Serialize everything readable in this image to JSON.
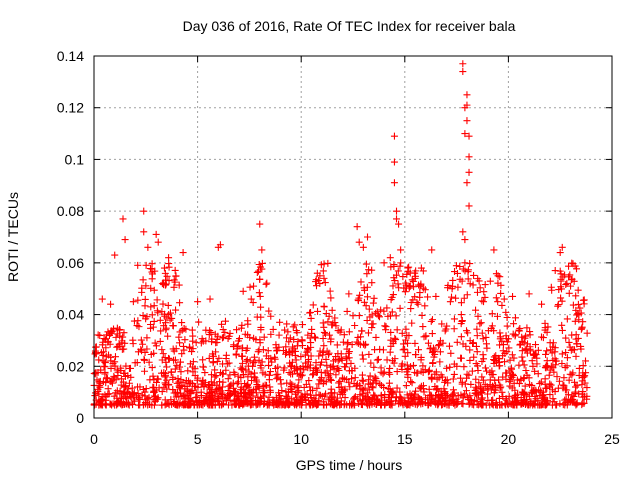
{
  "chart_data": {
    "type": "scatter",
    "title": "Day 036 of 2016, Rate Of TEC Index for receiver bala",
    "xlabel": "GPS time / hours",
    "ylabel": "ROTI / TECUs",
    "xlim": [
      0,
      25
    ],
    "ylim": [
      0,
      0.14
    ],
    "x_ticks": [
      0,
      5,
      10,
      15,
      20,
      25
    ],
    "x_tick_labels": [
      "0",
      "5",
      "10",
      "15",
      "20",
      "25"
    ],
    "y_ticks": [
      0,
      0.02,
      0.04,
      0.06,
      0.08,
      0.1,
      0.12,
      0.14
    ],
    "y_tick_labels": [
      "0",
      "0.02",
      "0.04",
      "0.06",
      "0.08",
      "0.1",
      "0.12",
      "0.14"
    ],
    "grid": true,
    "marker": "plus",
    "marker_color": "#ff0000",
    "time_range_hours": [
      0,
      23.8
    ],
    "typical_range": [
      0.005,
      0.03
    ],
    "points": [
      [
        1.0,
        0.063
      ],
      [
        1.4,
        0.077
      ],
      [
        1.5,
        0.069
      ],
      [
        2.4,
        0.08
      ],
      [
        2.4,
        0.072
      ],
      [
        2.6,
        0.066
      ],
      [
        3.0,
        0.071
      ],
      [
        3.1,
        0.068
      ],
      [
        3.6,
        0.062
      ],
      [
        4.3,
        0.064
      ],
      [
        6.0,
        0.066
      ],
      [
        6.1,
        0.067
      ],
      [
        8.0,
        0.075
      ],
      [
        8.1,
        0.065
      ],
      [
        10.9,
        0.055
      ],
      [
        11.1,
        0.054
      ],
      [
        12.7,
        0.074
      ],
      [
        12.8,
        0.068
      ],
      [
        13.0,
        0.066
      ],
      [
        13.2,
        0.07
      ],
      [
        14.0,
        0.06
      ],
      [
        14.3,
        0.062
      ],
      [
        14.5,
        0.109
      ],
      [
        14.5,
        0.099
      ],
      [
        14.5,
        0.091
      ],
      [
        14.6,
        0.08
      ],
      [
        14.6,
        0.077
      ],
      [
        14.7,
        0.075
      ],
      [
        14.8,
        0.065
      ],
      [
        16.3,
        0.065
      ],
      [
        17.8,
        0.137
      ],
      [
        17.8,
        0.134
      ],
      [
        17.9,
        0.12
      ],
      [
        17.9,
        0.11
      ],
      [
        18.0,
        0.125
      ],
      [
        18.0,
        0.121
      ],
      [
        18.0,
        0.115
      ],
      [
        18.1,
        0.109
      ],
      [
        18.1,
        0.101
      ],
      [
        18.1,
        0.095
      ],
      [
        18.0,
        0.091
      ],
      [
        18.1,
        0.082
      ],
      [
        17.8,
        0.072
      ],
      [
        17.9,
        0.069
      ],
      [
        17.9,
        0.06
      ],
      [
        19.3,
        0.065
      ],
      [
        19.5,
        0.055
      ],
      [
        21.0,
        0.048
      ],
      [
        22.5,
        0.064
      ],
      [
        22.6,
        0.066
      ],
      [
        23.0,
        0.051
      ],
      [
        0.4,
        0.046
      ],
      [
        0.8,
        0.044
      ],
      [
        1.9,
        0.045
      ],
      [
        3.4,
        0.058
      ],
      [
        5.0,
        0.045
      ],
      [
        5.6,
        0.046
      ],
      [
        7.2,
        0.049
      ],
      [
        7.7,
        0.051
      ],
      [
        9.2,
        0.034
      ],
      [
        9.8,
        0.033
      ],
      [
        11.5,
        0.036
      ],
      [
        12.3,
        0.048
      ],
      [
        15.5,
        0.054
      ],
      [
        15.8,
        0.058
      ],
      [
        16.5,
        0.047
      ],
      [
        17.2,
        0.045
      ],
      [
        18.8,
        0.045
      ],
      [
        19.8,
        0.046
      ],
      [
        20.2,
        0.047
      ],
      [
        21.6,
        0.044
      ],
      [
        23.4,
        0.04
      ]
    ]
  }
}
